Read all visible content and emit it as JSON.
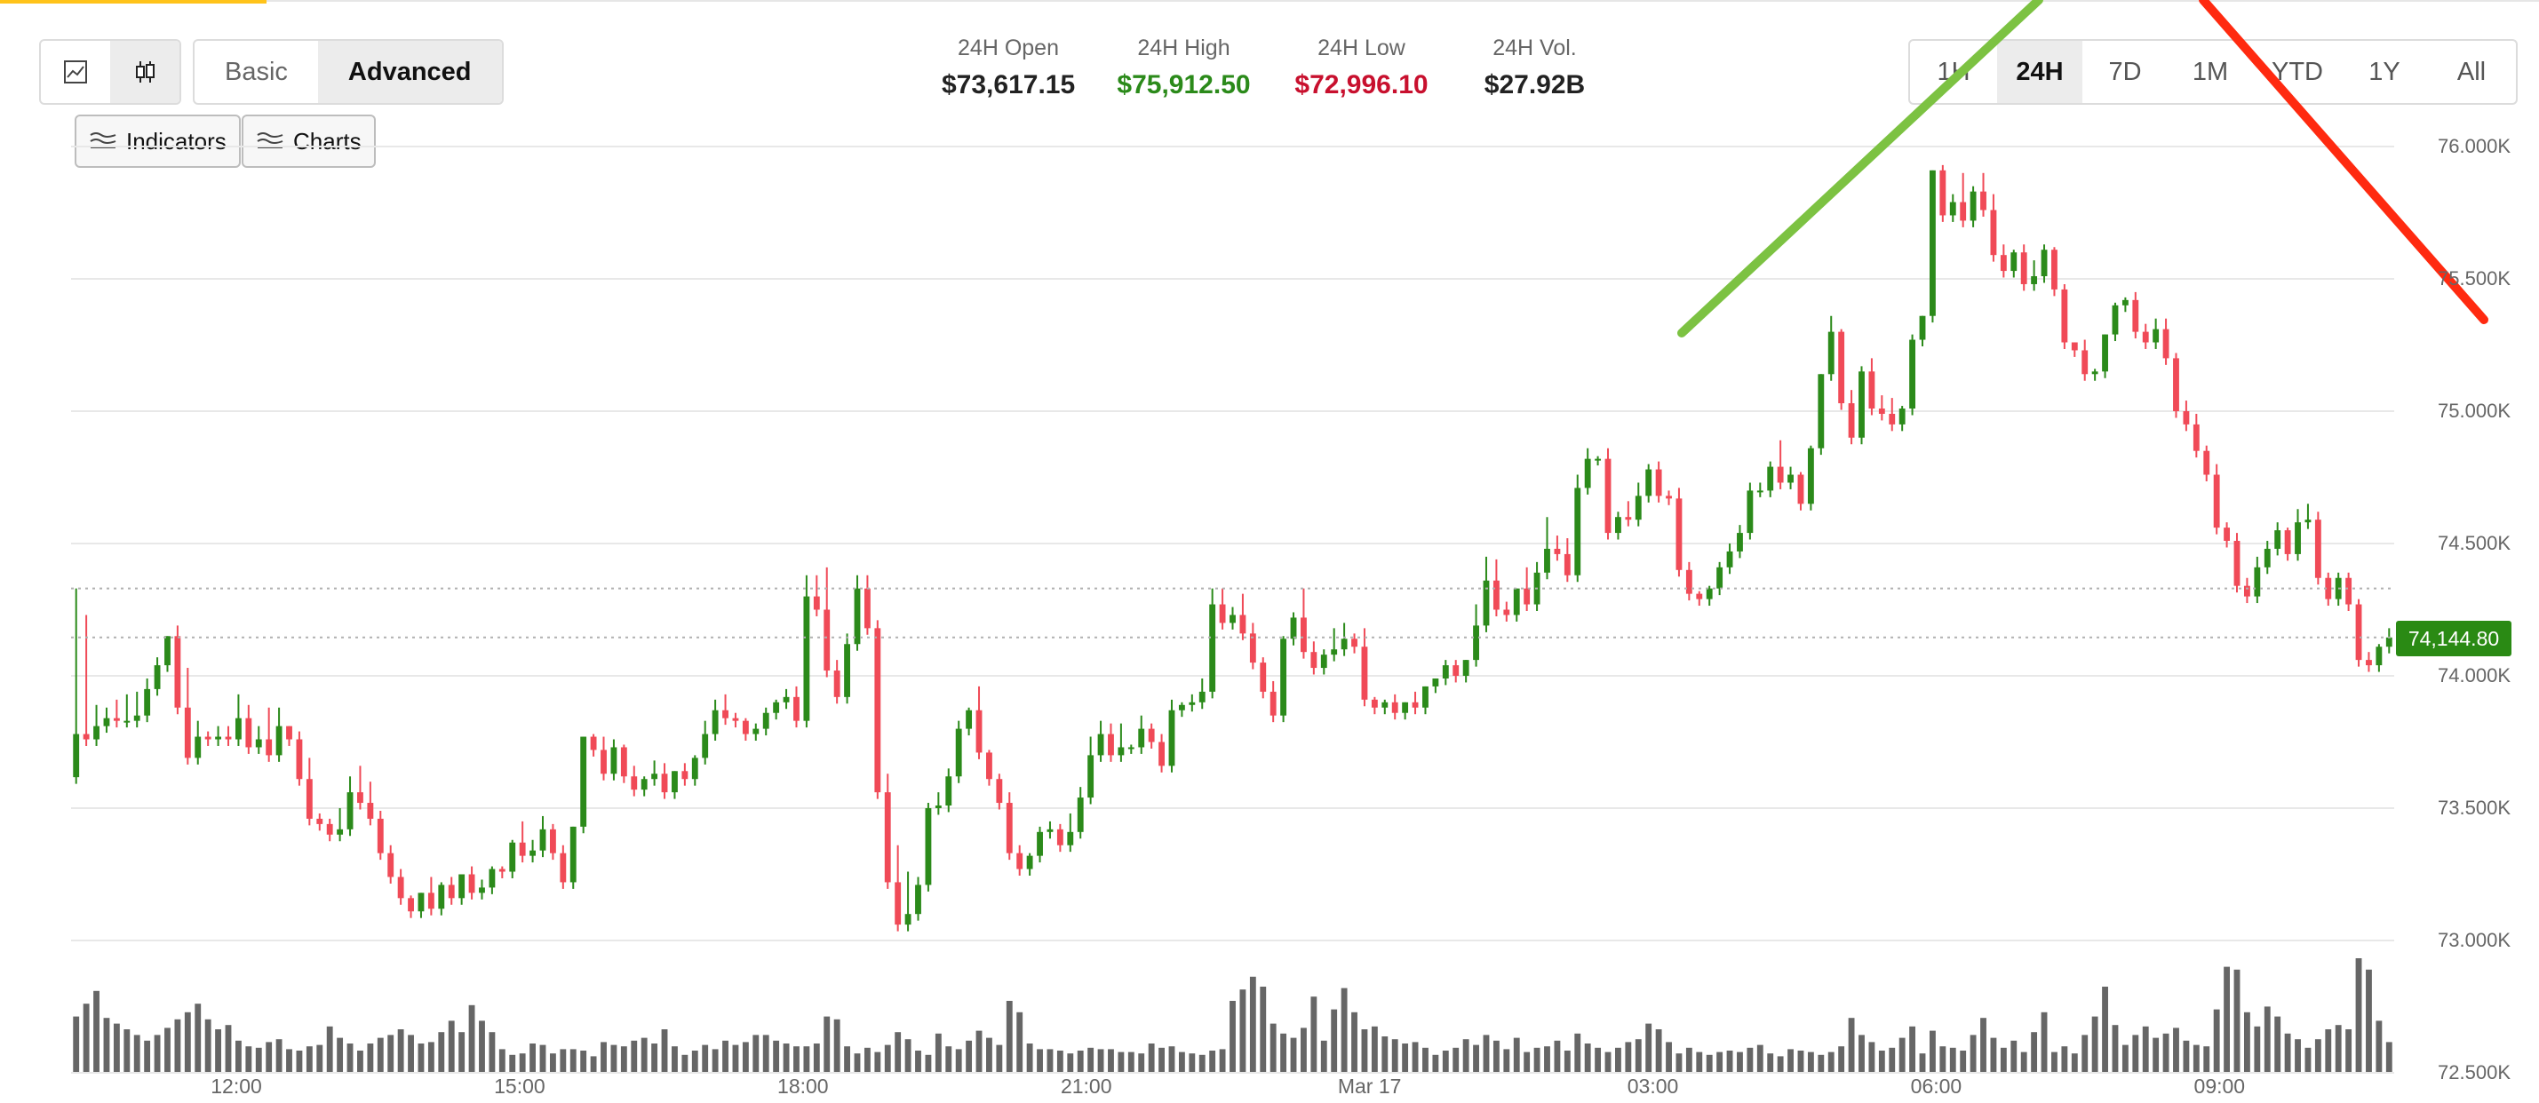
{
  "toolbar": {
    "chart_types": [
      {
        "name": "line-chart",
        "icon": "line-chart-icon",
        "active": false
      },
      {
        "name": "candlestick-chart",
        "icon": "candlestick-icon",
        "active": true
      }
    ],
    "modes": [
      {
        "label": "Basic",
        "active": false
      },
      {
        "label": "Advanced",
        "active": true
      }
    ],
    "indicators_label": "Indicators",
    "charts_label": "Charts"
  },
  "stats": {
    "open_label": "24H Open",
    "open_value": "$73,617.15",
    "high_label": "24H High",
    "high_value": "$75,912.50",
    "low_label": "24H Low",
    "low_value": "$72,996.10",
    "vol_label": "24H Vol.",
    "vol_value": "$27.92B"
  },
  "ranges": [
    {
      "label": "1H",
      "active": false
    },
    {
      "label": "24H",
      "active": true
    },
    {
      "label": "7D",
      "active": false
    },
    {
      "label": "1M",
      "active": false
    },
    {
      "label": "YTD",
      "active": false
    },
    {
      "label": "1Y",
      "active": false
    },
    {
      "label": "All",
      "active": false
    }
  ],
  "colors": {
    "up": "#2b8a1a",
    "down": "#f04a57",
    "volume": "#666666",
    "grid": "#e8e8e8",
    "high_text": "#2b8a1a",
    "low_text": "#c8102e",
    "trend_up": "#7cc242",
    "trend_down": "#ff2a10"
  },
  "chart_data": {
    "type": "candlestick",
    "current_price": "74,144.80",
    "y_ticks": [
      "76.000K",
      "75.500K",
      "75.000K",
      "74.500K",
      "74.000K",
      "73.500K",
      "73.000K",
      "72.500K"
    ],
    "ylim": [
      72500,
      76000
    ],
    "x_ticks": [
      {
        "label": "12:00",
        "t": 2.0
      },
      {
        "label": "15:00",
        "t": 5.0
      },
      {
        "label": "18:00",
        "t": 8.0
      },
      {
        "label": "21:00",
        "t": 11.0
      },
      {
        "label": "Mar 17",
        "t": 14.0
      },
      {
        "label": "03:00",
        "t": 17.0
      },
      {
        "label": "06:00",
        "t": 20.0
      },
      {
        "label": "09:00",
        "t": 23.0
      }
    ],
    "x_range_hours": [
      0.25,
      24.85
    ],
    "grid": true,
    "candles": [
      [
        73617,
        73780,
        74330
      ],
      [
        73780,
        73760,
        74230
      ],
      [
        73760,
        73810,
        73890
      ],
      [
        73810,
        73840,
        73880
      ],
      [
        73840,
        73830,
        73910
      ],
      [
        73830,
        73830,
        73930
      ],
      [
        73830,
        73850,
        73940
      ],
      [
        73850,
        73950,
        73990
      ],
      [
        73950,
        74040,
        74070
      ],
      [
        74040,
        74150,
        74150
      ],
      [
        74150,
        73880,
        74190
      ],
      [
        73880,
        73690,
        74030
      ],
      [
        73690,
        73770,
        73830
      ],
      [
        73770,
        73760,
        73790
      ],
      [
        73760,
        73770,
        73810
      ],
      [
        73770,
        73760,
        73810
      ],
      [
        73760,
        73840,
        73930
      ],
      [
        73840,
        73730,
        73890
      ],
      [
        73730,
        73760,
        73810
      ],
      [
        73760,
        73700,
        73880
      ],
      [
        73700,
        73810,
        73880
      ],
      [
        73810,
        73760,
        73810
      ],
      [
        73760,
        73610,
        73790
      ],
      [
        73610,
        73460,
        73690
      ],
      [
        73460,
        73440,
        73480
      ],
      [
        73440,
        73400,
        73460
      ],
      [
        73400,
        73420,
        73500
      ],
      [
        73420,
        73560,
        73620
      ],
      [
        73560,
        73520,
        73660
      ],
      [
        73520,
        73460,
        73600
      ],
      [
        73460,
        73330,
        73490
      ],
      [
        73330,
        73240,
        73360
      ],
      [
        73240,
        73160,
        73270
      ],
      [
        73160,
        73110,
        73170
      ],
      [
        73110,
        73180,
        73180
      ],
      [
        73180,
        73120,
        73240
      ],
      [
        73120,
        73210,
        73220
      ],
      [
        73210,
        73160,
        73240
      ],
      [
        73160,
        73250,
        73250
      ],
      [
        73250,
        73180,
        73280
      ],
      [
        73180,
        73200,
        73230
      ],
      [
        73200,
        73270,
        73280
      ],
      [
        73270,
        73260,
        73280
      ],
      [
        73260,
        73370,
        73380
      ],
      [
        73370,
        73320,
        73450
      ],
      [
        73320,
        73340,
        73380
      ],
      [
        73340,
        73420,
        73470
      ],
      [
        73420,
        73330,
        73440
      ],
      [
        73330,
        73220,
        73360
      ],
      [
        73220,
        73430,
        73430
      ],
      [
        73430,
        73770,
        73770
      ],
      [
        73770,
        73720,
        73780
      ],
      [
        73720,
        73630,
        73770
      ],
      [
        73630,
        73730,
        73760
      ],
      [
        73730,
        73620,
        73740
      ],
      [
        73620,
        73570,
        73660
      ],
      [
        73570,
        73610,
        73620
      ],
      [
        73610,
        73630,
        73680
      ],
      [
        73630,
        73560,
        73670
      ],
      [
        73560,
        73640,
        73640
      ],
      [
        73640,
        73610,
        73670
      ],
      [
        73610,
        73690,
        73700
      ],
      [
        73690,
        73780,
        73830
      ],
      [
        73780,
        73870,
        73910
      ],
      [
        73870,
        73840,
        73930
      ],
      [
        73840,
        73830,
        73860
      ],
      [
        73830,
        73780,
        73840
      ],
      [
        73780,
        73800,
        73820
      ],
      [
        73800,
        73860,
        73880
      ],
      [
        73860,
        73900,
        73910
      ],
      [
        73900,
        73920,
        73950
      ],
      [
        73920,
        73830,
        73960
      ],
      [
        73830,
        74300,
        74380
      ],
      [
        74300,
        74250,
        74380
      ],
      [
        74250,
        74020,
        74410
      ],
      [
        74020,
        73920,
        74060
      ],
      [
        73920,
        74120,
        74160
      ],
      [
        74120,
        74330,
        74380
      ],
      [
        74330,
        74180,
        74380
      ],
      [
        74180,
        73560,
        74210
      ],
      [
        73560,
        73220,
        73630
      ],
      [
        73220,
        73060,
        73360
      ],
      [
        73060,
        73100,
        73260
      ],
      [
        73100,
        73210,
        73240
      ],
      [
        73210,
        73500,
        73520
      ],
      [
        73500,
        73510,
        73560
      ],
      [
        73510,
        73620,
        73650
      ],
      [
        73620,
        73800,
        73830
      ],
      [
        73800,
        73870,
        73880
      ],
      [
        73870,
        73710,
        73960
      ],
      [
        73710,
        73610,
        73720
      ],
      [
        73610,
        73520,
        73630
      ],
      [
        73520,
        73330,
        73560
      ],
      [
        73330,
        73270,
        73360
      ],
      [
        73270,
        73320,
        73330
      ],
      [
        73320,
        73410,
        73430
      ],
      [
        73410,
        73420,
        73450
      ],
      [
        73420,
        73360,
        73440
      ],
      [
        73360,
        73410,
        73480
      ],
      [
        73410,
        73540,
        73580
      ],
      [
        73540,
        73700,
        73770
      ],
      [
        73700,
        73780,
        73830
      ],
      [
        73780,
        73700,
        73820
      ],
      [
        73700,
        73730,
        73820
      ],
      [
        73730,
        73730,
        73740
      ],
      [
        73730,
        73800,
        73850
      ],
      [
        73800,
        73750,
        73820
      ],
      [
        73750,
        73660,
        73780
      ],
      [
        73660,
        73870,
        73910
      ],
      [
        73870,
        73890,
        73900
      ],
      [
        73890,
        73900,
        73930
      ],
      [
        73900,
        73940,
        73990
      ],
      [
        73940,
        74270,
        74330
      ],
      [
        74270,
        74200,
        74330
      ],
      [
        74200,
        74230,
        74260
      ],
      [
        74230,
        74160,
        74310
      ],
      [
        74160,
        74050,
        74200
      ],
      [
        74050,
        73940,
        74070
      ],
      [
        73940,
        73850,
        73980
      ],
      [
        73850,
        74140,
        74150
      ],
      [
        74140,
        74220,
        74240
      ],
      [
        74220,
        74090,
        74330
      ],
      [
        74090,
        74030,
        74130
      ],
      [
        74030,
        74080,
        74100
      ],
      [
        74080,
        74100,
        74180
      ],
      [
        74100,
        74140,
        74200
      ],
      [
        74140,
        74110,
        74160
      ],
      [
        74110,
        73910,
        74180
      ],
      [
        73910,
        73880,
        73920
      ],
      [
        73880,
        73900,
        73910
      ],
      [
        73900,
        73860,
        73930
      ],
      [
        73860,
        73900,
        73900
      ],
      [
        73900,
        73880,
        73940
      ],
      [
        73880,
        73960,
        73960
      ],
      [
        73960,
        73990,
        73990
      ],
      [
        73990,
        74040,
        74060
      ],
      [
        74040,
        74000,
        74060
      ],
      [
        74000,
        74060,
        74060
      ],
      [
        74060,
        74190,
        74270
      ],
      [
        74190,
        74360,
        74450
      ],
      [
        74360,
        74250,
        74440
      ],
      [
        74250,
        74230,
        74280
      ],
      [
        74230,
        74330,
        74330
      ],
      [
        74330,
        74270,
        74410
      ],
      [
        74270,
        74390,
        74430
      ],
      [
        74390,
        74480,
        74600
      ],
      [
        74480,
        74460,
        74530
      ],
      [
        74460,
        74380,
        74520
      ],
      [
        74380,
        74710,
        74760
      ],
      [
        74710,
        74820,
        74860
      ],
      [
        74820,
        74820,
        74830
      ],
      [
        74820,
        74540,
        74860
      ],
      [
        74540,
        74600,
        74620
      ],
      [
        74600,
        74590,
        74660
      ],
      [
        74590,
        74680,
        74730
      ],
      [
        74680,
        74780,
        74800
      ],
      [
        74780,
        74680,
        74810
      ],
      [
        74680,
        74670,
        74700
      ],
      [
        74670,
        74400,
        74710
      ],
      [
        74400,
        74310,
        74430
      ],
      [
        74310,
        74290,
        74320
      ],
      [
        74290,
        74330,
        74340
      ],
      [
        74330,
        74410,
        74430
      ],
      [
        74410,
        74470,
        74500
      ],
      [
        74470,
        74540,
        74570
      ],
      [
        74540,
        74700,
        74730
      ],
      [
        74700,
        74700,
        74730
      ],
      [
        74700,
        74790,
        74810
      ],
      [
        74790,
        74730,
        74890
      ],
      [
        74730,
        74760,
        74790
      ],
      [
        74760,
        74650,
        74770
      ],
      [
        74650,
        74860,
        74870
      ],
      [
        74860,
        75140,
        75140
      ],
      [
        75140,
        75300,
        75360
      ],
      [
        75300,
        75030,
        75310
      ],
      [
        75030,
        74900,
        75080
      ],
      [
        74900,
        75150,
        75170
      ],
      [
        75150,
        75010,
        75200
      ],
      [
        75010,
        74990,
        75060
      ],
      [
        74990,
        74950,
        75050
      ],
      [
        74950,
        75010,
        75020
      ],
      [
        75010,
        75270,
        75290
      ],
      [
        75270,
        75360,
        75360
      ],
      [
        75360,
        75910,
        75910
      ],
      [
        75910,
        75740,
        75930
      ],
      [
        75740,
        75790,
        75820
      ],
      [
        75790,
        75720,
        75900
      ],
      [
        75720,
        75830,
        75850
      ],
      [
        75830,
        75760,
        75900
      ],
      [
        75760,
        75590,
        75820
      ],
      [
        75590,
        75530,
        75630
      ],
      [
        75530,
        75600,
        75610
      ],
      [
        75600,
        75480,
        75630
      ],
      [
        75480,
        75510,
        75570
      ],
      [
        75510,
        75610,
        75630
      ],
      [
        75610,
        75460,
        75620
      ],
      [
        75460,
        75260,
        75480
      ],
      [
        75260,
        75230,
        75260
      ],
      [
        75230,
        75140,
        75270
      ],
      [
        75140,
        75150,
        75160
      ],
      [
        75150,
        75290,
        75290
      ],
      [
        75290,
        75400,
        75410
      ],
      [
        75400,
        75420,
        75430
      ],
      [
        75420,
        75300,
        75450
      ],
      [
        75300,
        75260,
        75330
      ],
      [
        75260,
        75310,
        75350
      ],
      [
        75310,
        75200,
        75350
      ],
      [
        75200,
        75000,
        75220
      ],
      [
        75000,
        74950,
        75040
      ],
      [
        74950,
        74850,
        74990
      ],
      [
        74850,
        74760,
        74870
      ],
      [
        74760,
        74560,
        74800
      ],
      [
        74560,
        74510,
        74580
      ],
      [
        74510,
        74340,
        74540
      ],
      [
        74340,
        74300,
        74370
      ],
      [
        74300,
        74410,
        74450
      ],
      [
        74410,
        74480,
        74510
      ],
      [
        74480,
        74550,
        74580
      ],
      [
        74550,
        74460,
        74560
      ],
      [
        74460,
        74580,
        74630
      ],
      [
        74580,
        74590,
        74650
      ],
      [
        74590,
        74370,
        74620
      ],
      [
        74370,
        74290,
        74390
      ],
      [
        74290,
        74370,
        74390
      ],
      [
        74370,
        74270,
        74390
      ],
      [
        74270,
        74060,
        74290
      ],
      [
        74060,
        74040,
        74090
      ],
      [
        74040,
        74110,
        74120
      ],
      [
        74110,
        74145,
        74180
      ]
    ],
    "volume": [
      0.39,
      0.48,
      0.57,
      0.38,
      0.34,
      0.3,
      0.26,
      0.22,
      0.26,
      0.31,
      0.37,
      0.42,
      0.48,
      0.37,
      0.3,
      0.33,
      0.22,
      0.18,
      0.17,
      0.21,
      0.23,
      0.16,
      0.15,
      0.18,
      0.19,
      0.32,
      0.24,
      0.2,
      0.15,
      0.2,
      0.24,
      0.26,
      0.3,
      0.26,
      0.2,
      0.21,
      0.28,
      0.36,
      0.28,
      0.47,
      0.36,
      0.28,
      0.16,
      0.12,
      0.13,
      0.2,
      0.19,
      0.13,
      0.16,
      0.16,
      0.15,
      0.11,
      0.21,
      0.19,
      0.18,
      0.22,
      0.24,
      0.2,
      0.3,
      0.18,
      0.12,
      0.15,
      0.19,
      0.16,
      0.22,
      0.19,
      0.21,
      0.26,
      0.26,
      0.22,
      0.2,
      0.18,
      0.18,
      0.2,
      0.39,
      0.37,
      0.18,
      0.13,
      0.17,
      0.14,
      0.19,
      0.28,
      0.23,
      0.15,
      0.12,
      0.27,
      0.18,
      0.16,
      0.22,
      0.29,
      0.24,
      0.19,
      0.5,
      0.42,
      0.2,
      0.16,
      0.16,
      0.15,
      0.13,
      0.15,
      0.17,
      0.16,
      0.16,
      0.14,
      0.14,
      0.13,
      0.2,
      0.17,
      0.18,
      0.14,
      0.13,
      0.12,
      0.15,
      0.16,
      0.5,
      0.58,
      0.67,
      0.6,
      0.34,
      0.27,
      0.24,
      0.31,
      0.53,
      0.22,
      0.44,
      0.59,
      0.42,
      0.3,
      0.32,
      0.25,
      0.23,
      0.2,
      0.21,
      0.17,
      0.12,
      0.15,
      0.17,
      0.23,
      0.19,
      0.26,
      0.22,
      0.16,
      0.24,
      0.14,
      0.17,
      0.18,
      0.22,
      0.15,
      0.27,
      0.2,
      0.17,
      0.14,
      0.17,
      0.21,
      0.23,
      0.34,
      0.3,
      0.21,
      0.13,
      0.17,
      0.14,
      0.12,
      0.14,
      0.15,
      0.14,
      0.17,
      0.19,
      0.13,
      0.11,
      0.16,
      0.15,
      0.14,
      0.12,
      0.14,
      0.18,
      0.38,
      0.26,
      0.21,
      0.15,
      0.17,
      0.24,
      0.32,
      0.13,
      0.29,
      0.18,
      0.17,
      0.15,
      0.26,
      0.38,
      0.24,
      0.17,
      0.22,
      0.14,
      0.28,
      0.42,
      0.14,
      0.18,
      0.13,
      0.26,
      0.39,
      0.6,
      0.33,
      0.19,
      0.26,
      0.32,
      0.24,
      0.27,
      0.31,
      0.22,
      0.19,
      0.18,
      0.44,
      0.74,
      0.72,
      0.42,
      0.32,
      0.46,
      0.39,
      0.27,
      0.23,
      0.17,
      0.23,
      0.3,
      0.33,
      0.3,
      0.8,
      0.72,
      0.36,
      0.21,
      0.16,
      0.2,
      0.3,
      0.4,
      0.32,
      0.24,
      0.21,
      0.31,
      0.28,
      0.36,
      0.31,
      0.23,
      0.17,
      0.15,
      0.31,
      0.17,
      0.29,
      0.45,
      0.54,
      0.37,
      0.35,
      0.4,
      0.41,
      0.37,
      0.46,
      0.4,
      0.25,
      0.19,
      0.44,
      0.22,
      0.16,
      0.17,
      0.46,
      0.19,
      0.17,
      0.28
    ]
  }
}
